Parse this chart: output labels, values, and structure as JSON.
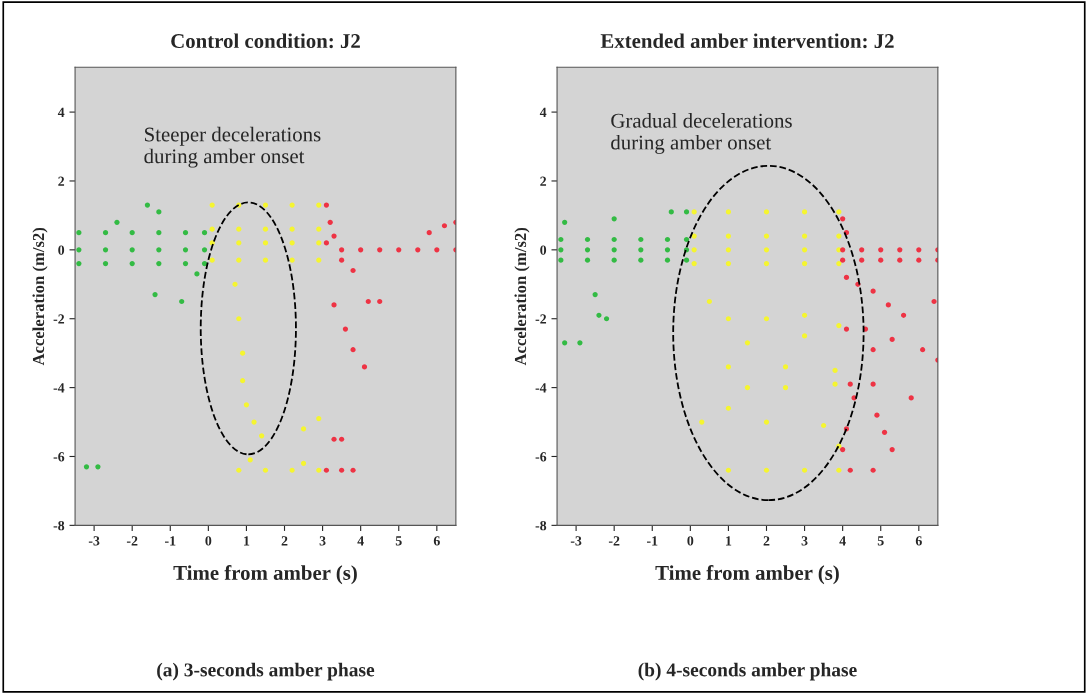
{
  "chart_data": [
    {
      "type": "scatter",
      "title": "Control condition: J2",
      "xlabel": "Time from amber (s)",
      "ylabel": "Acceleration (m/s2)",
      "xlim": [
        -3.5,
        6.5
      ],
      "ylim": [
        -8,
        5.3
      ],
      "xticks": [
        -3,
        -2,
        -1,
        0,
        1,
        2,
        3,
        4,
        5,
        6
      ],
      "yticks": [
        -8,
        -6,
        -4,
        -2,
        0,
        2,
        4
      ],
      "grid": false,
      "marker": "circle",
      "annotations": [
        "Steeper decelerations\nduring amber onset",
        "(a) 3-seconds amber phase"
      ],
      "series": [
        {
          "color": "#33bb44",
          "x": [
            -3.4,
            -2.7,
            -2,
            -1.3,
            -0.6,
            -0.1,
            -3.4,
            -2.7,
            -2,
            -1.3,
            -0.6,
            -0.1,
            -3.4,
            -2.7,
            -2,
            -1.3,
            -0.6,
            -0.1,
            -1.6,
            -1.3,
            -2.4,
            -1.4,
            -0.7,
            -0.3,
            -3.2,
            -2.9
          ],
          "values": [
            0.5,
            0.5,
            0.5,
            0.5,
            0.5,
            0.5,
            0,
            0,
            0,
            0,
            0,
            0,
            -0.4,
            -0.4,
            -0.4,
            -0.4,
            -0.4,
            -0.4,
            1.3,
            1.1,
            0.8,
            -1.3,
            -1.5,
            -0.7,
            -6.3,
            -6.3
          ]
        },
        {
          "color": "#f5f530",
          "x": [
            0.1,
            0.8,
            1.5,
            2.2,
            2.9,
            0.1,
            0.8,
            1.5,
            2.2,
            2.9,
            0.1,
            0.8,
            1.5,
            2.2,
            2.9,
            0.1,
            0.8,
            1.5,
            2.2,
            2.9,
            0.7,
            0.8,
            0.9,
            0.9,
            1,
            1.2,
            1.4,
            1.1,
            0.8,
            1.5,
            2.2,
            2.9,
            2.5,
            2.9,
            2.5
          ],
          "values": [
            1.3,
            1.3,
            1.3,
            1.3,
            1.3,
            0.6,
            0.6,
            0.6,
            0.6,
            0.6,
            0.2,
            0.2,
            0.2,
            0.2,
            0.2,
            -0.3,
            -0.3,
            -0.3,
            -0.3,
            -0.3,
            -1,
            -2,
            -3,
            -3.8,
            -4.5,
            -5,
            -5.4,
            -6.1,
            -6.4,
            -6.4,
            -6.4,
            -6.4,
            -5.2,
            -4.9,
            -6.2
          ]
        },
        {
          "color": "#ee3344",
          "x": [
            3.1,
            3.2,
            3.3,
            3.1,
            3.5,
            4,
            4.5,
            5,
            5.5,
            6,
            6.5,
            3.5,
            3.8,
            3.3,
            4.2,
            4.5,
            3.6,
            3.8,
            4.1,
            5.8,
            6.2,
            6.5,
            3.3,
            3.5,
            3.1,
            3.5,
            3.8
          ],
          "values": [
            1.3,
            0.8,
            0.4,
            0.2,
            0,
            0,
            0,
            0,
            0,
            0,
            0,
            -0.3,
            -0.6,
            -1.6,
            -1.5,
            -1.5,
            -2.3,
            -2.9,
            -3.4,
            0.5,
            0.7,
            0.8,
            -5.5,
            -5.5,
            -6.4,
            -6.4,
            -6.4
          ]
        }
      ]
    },
    {
      "type": "scatter",
      "title": "Extended amber intervention: J2",
      "xlabel": "Time from amber (s)",
      "ylabel": "Acceleration (m/s2)",
      "xlim": [
        -3.5,
        6.5
      ],
      "ylim": [
        -8,
        5.3
      ],
      "xticks": [
        -3,
        -2,
        -1,
        0,
        1,
        2,
        3,
        4,
        5,
        6
      ],
      "yticks": [
        -8,
        -6,
        -4,
        -2,
        0,
        2,
        4
      ],
      "grid": false,
      "marker": "circle",
      "annotations": [
        "Gradual decelerations\nduring amber onset",
        "(b) 4-seconds amber phase"
      ],
      "series": [
        {
          "color": "#33bb44",
          "x": [
            -3.4,
            -2.7,
            -2,
            -1.3,
            -0.6,
            -0.1,
            -3.4,
            -2.7,
            -2,
            -1.3,
            -0.6,
            -0.1,
            -3.4,
            -2.7,
            -2,
            -1.3,
            -0.6,
            -0.1,
            -3.3,
            -2,
            -0.5,
            -0.1,
            -2.5,
            -2.9,
            -3.3,
            -2.4,
            -2.2
          ],
          "values": [
            0.3,
            0.3,
            0.3,
            0.3,
            0.3,
            0.3,
            0,
            0,
            0,
            0,
            0,
            0,
            -0.3,
            -0.3,
            -0.3,
            -0.3,
            -0.3,
            -0.3,
            0.8,
            0.9,
            1.1,
            1.1,
            -1.3,
            -2.7,
            -2.7,
            -1.9,
            -2
          ]
        },
        {
          "color": "#f5f530",
          "x": [
            0.1,
            1,
            2,
            3,
            3.9,
            0.1,
            1,
            2,
            3,
            3.9,
            0.1,
            1,
            2,
            3,
            3.9,
            0.1,
            1,
            2,
            3,
            3.9,
            0.5,
            1,
            2,
            3,
            3.9,
            1.5,
            3,
            1,
            2.5,
            3.8,
            1.5,
            2.5,
            3.8,
            1,
            2,
            3.5,
            3.9,
            1,
            2,
            3,
            3.9,
            0.3
          ],
          "values": [
            1.1,
            1.1,
            1.1,
            1.1,
            1.1,
            0.4,
            0.4,
            0.4,
            0.4,
            0.4,
            0,
            0,
            0,
            0,
            0,
            -0.4,
            -0.4,
            -0.4,
            -0.4,
            -0.4,
            -1.5,
            -2,
            -2,
            -1.9,
            -2.2,
            -2.7,
            -2.5,
            -3.4,
            -3.4,
            -3.5,
            -4,
            -4,
            -3.9,
            -4.6,
            -5,
            -5.1,
            -5.7,
            -6.4,
            -6.4,
            -6.4,
            -6.4,
            -5
          ]
        },
        {
          "color": "#ee3344",
          "x": [
            4,
            4.5,
            5,
            5.5,
            6,
            6.5,
            4,
            4.5,
            5,
            5.5,
            6,
            6.5,
            4,
            4.1,
            4.1,
            4.4,
            4.8,
            5.2,
            5.6,
            4.1,
            4.6,
            4.8,
            5.3,
            6.1,
            6.5,
            4.2,
            4.8,
            4.3,
            4.9,
            5.1,
            5.3,
            4.1,
            4,
            4.2,
            4.8,
            5.8,
            6.4
          ],
          "values": [
            0,
            0,
            0,
            0,
            0,
            0,
            -0.3,
            -0.3,
            -0.3,
            -0.3,
            -0.3,
            -0.3,
            0.9,
            0.5,
            -0.8,
            -1,
            -1.2,
            -1.6,
            -1.9,
            -2.3,
            -2.3,
            -2.9,
            -2.6,
            -2.9,
            -3.2,
            -3.9,
            -3.9,
            -4.3,
            -4.8,
            -5.3,
            -5.8,
            -5.2,
            -5.8,
            -6.4,
            -6.4,
            -4.3,
            -1.5
          ]
        }
      ]
    }
  ]
}
